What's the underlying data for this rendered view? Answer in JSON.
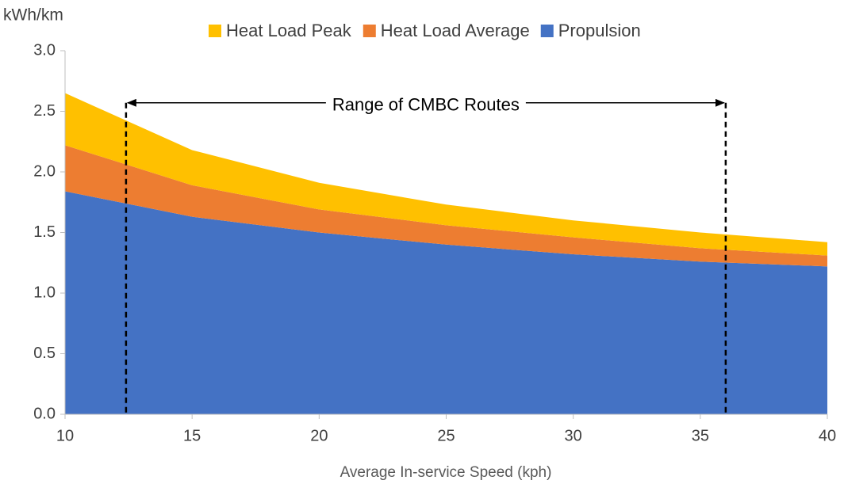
{
  "chart_data": {
    "type": "stacked_area",
    "y_axis_label": "kWh/km",
    "x_axis_label": "Average In-service Speed (kph)",
    "x": [
      10,
      15,
      20,
      25,
      30,
      35,
      40
    ],
    "series": [
      {
        "name": "Heat Load Peak",
        "color": "#FFC000",
        "values": [
          0.43,
          0.29,
          0.22,
          0.17,
          0.14,
          0.13,
          0.11
        ]
      },
      {
        "name": "Heat Load Average",
        "color": "#ED7D31",
        "values": [
          0.38,
          0.26,
          0.19,
          0.16,
          0.14,
          0.11,
          0.09
        ]
      },
      {
        "name": "Propulsion",
        "color": "#4472C4",
        "values": [
          1.84,
          1.63,
          1.5,
          1.4,
          1.32,
          1.26,
          1.22
        ]
      }
    ],
    "annotation": {
      "text": "Range of CMBC Routes",
      "x_range": [
        12.4,
        36
      ],
      "y": 2.57
    },
    "xlim": [
      10,
      40
    ],
    "xticks": [
      10,
      15,
      20,
      25,
      30,
      35,
      40
    ],
    "ylim": [
      0,
      3
    ],
    "yticks": [
      {
        "value": 0,
        "label": "0.0"
      },
      {
        "value": 0.5,
        "label": "0.5"
      },
      {
        "value": 1,
        "label": "1.0"
      },
      {
        "value": 1.5,
        "label": "1.5"
      },
      {
        "value": 2,
        "label": "2.0"
      },
      {
        "value": 2.5,
        "label": "2.5"
      },
      {
        "value": 3,
        "label": "3.0"
      }
    ],
    "legend": "top"
  }
}
